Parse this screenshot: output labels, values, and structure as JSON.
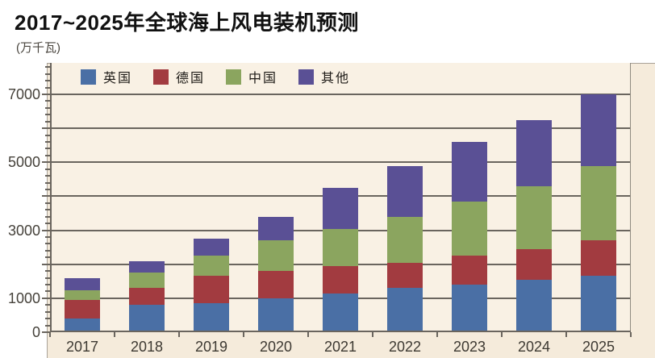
{
  "page": {
    "title": "2017~2025年全球海上风电装机预测",
    "unit_label": "(万千瓦)"
  },
  "legend": [
    {
      "label": "英国",
      "color": "#4a6fa5"
    },
    {
      "label": "德国",
      "color": "#a23b40"
    },
    {
      "label": "中国",
      "color": "#8ba55f"
    },
    {
      "label": "其他",
      "color": "#5a5095"
    }
  ],
  "chart_data": {
    "type": "bar",
    "stacked": true,
    "title": "2017~2025年全球海上风电装机预测",
    "ylabel": "万千瓦",
    "categories": [
      "2017",
      "2018",
      "2019",
      "2020",
      "2021",
      "2022",
      "2023",
      "2024",
      "2025"
    ],
    "series": [
      {
        "name": "英国",
        "color": "#4a6fa5",
        "values": [
          400,
          800,
          850,
          1000,
          1150,
          1300,
          1400,
          1550,
          1650
        ]
      },
      {
        "name": "德国",
        "color": "#a23b40",
        "values": [
          550,
          500,
          800,
          800,
          800,
          750,
          850,
          900,
          1050
        ]
      },
      {
        "name": "中国",
        "color": "#8ba55f",
        "values": [
          300,
          450,
          600,
          900,
          1100,
          1350,
          1600,
          1850,
          2200
        ]
      },
      {
        "name": "其他",
        "color": "#5a5095",
        "values": [
          350,
          350,
          500,
          700,
          1200,
          1500,
          1750,
          1950,
          2100
        ]
      }
    ],
    "totals": [
      1600,
      2100,
      2750,
      3400,
      4250,
      4900,
      5600,
      6250,
      7000
    ],
    "ylim": [
      0,
      7900
    ],
    "y_gridlines": [
      1000,
      2000,
      3000,
      4000,
      5000,
      6000,
      7000
    ],
    "y_tick_labels": [
      0,
      1000,
      3000,
      5000,
      7000
    ],
    "y_minor_tick_step": 200,
    "grid": true,
    "legend_position": "top-inside"
  },
  "colors": {
    "panel_bg": "#f5ebdb",
    "plot_bg": "#f9f1e4",
    "gridline": "#6a655e",
    "axis": "#6a655e",
    "panel_border": "#a8a298",
    "label_text": "#45413a",
    "title_text": "#111111"
  }
}
